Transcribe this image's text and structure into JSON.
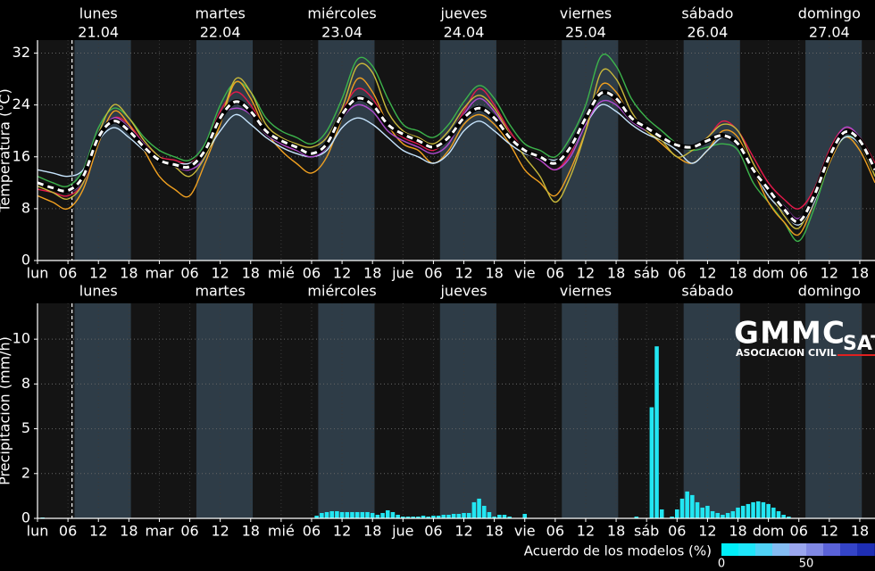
{
  "days": {
    "names": [
      "lunes",
      "martes",
      "miércoles",
      "jueves",
      "viernes",
      "sábado",
      "domingo"
    ],
    "dates": [
      "21.04",
      "22.04",
      "23.04",
      "24.04",
      "25.04",
      "26.04",
      "27.04"
    ],
    "colors": [
      "#ffffff",
      "#ffffff",
      "#ffffff",
      "#ffffff",
      "#ffffff",
      "#d01010",
      "#d01010"
    ]
  },
  "daylight": [
    [
      7.3,
      18.4
    ],
    [
      31.3,
      42.4
    ],
    [
      55.3,
      66.4
    ],
    [
      79.3,
      90.4
    ],
    [
      103.3,
      114.4
    ],
    [
      127.3,
      138.4
    ],
    [
      151.3,
      162.4
    ]
  ],
  "now": 6.8,
  "logo": {
    "name": "GMMC",
    "suffix": "SAT",
    "subtitle": "ASOCIACION CIVIL"
  },
  "agreement": {
    "label": "Acuerdo de los modelos (%)",
    "lim": [
      0,
      100
    ],
    "ticks": [
      0,
      50
    ],
    "colors": [
      "#00eef8",
      "#1ee6fa",
      "#50d2f6",
      "#84bcf2",
      "#9aa6ee",
      "#8088e4",
      "#5a62d8",
      "#3444c8",
      "#1e2eb4",
      "#142298"
    ]
  },
  "chart_data": [
    {
      "type": "line",
      "ylabel": "Temperatura (°C)",
      "xlim": [
        0,
        165
      ],
      "ylim": [
        0,
        34
      ],
      "yticks": [
        0,
        8,
        16,
        24,
        32
      ],
      "grid": true,
      "xticks": [
        {
          "value": 0,
          "label": "lun"
        },
        {
          "value": 6,
          "label": "06"
        },
        12,
        18,
        {
          "value": 24,
          "label": "mar"
        },
        {
          "value": 30,
          "label": "06"
        },
        {
          "value": 36,
          "label": "12"
        },
        {
          "value": 42,
          "label": "18"
        },
        {
          "value": 48,
          "label": "mié"
        },
        {
          "value": 54,
          "label": "06"
        },
        {
          "value": 60,
          "label": "12"
        },
        {
          "value": 66,
          "label": "18"
        },
        {
          "value": 72,
          "label": "jue"
        },
        {
          "value": 78,
          "label": "06"
        },
        {
          "value": 84,
          "label": "12"
        },
        {
          "value": 90,
          "label": "18"
        },
        {
          "value": 96,
          "label": "vie"
        },
        {
          "value": 102,
          "label": "06"
        },
        {
          "value": 108,
          "label": "12"
        },
        {
          "value": 114,
          "label": "18"
        },
        {
          "value": 120,
          "label": "sáb"
        },
        {
          "value": 126,
          "label": "06"
        },
        {
          "value": 132,
          "label": "12"
        },
        {
          "value": 138,
          "label": "18"
        },
        {
          "value": 144,
          "label": "dom"
        },
        {
          "value": 150,
          "label": "06"
        },
        {
          "value": 156,
          "label": "12"
        },
        {
          "value": 162,
          "label": "18"
        }
      ],
      "x": [
        0,
        3,
        6,
        9,
        12,
        15,
        18,
        21,
        24,
        27,
        30,
        33,
        36,
        39,
        42,
        45,
        48,
        51,
        54,
        57,
        60,
        63,
        66,
        69,
        72,
        75,
        78,
        81,
        84,
        87,
        90,
        93,
        96,
        99,
        102,
        105,
        108,
        111,
        114,
        117,
        120,
        123,
        126,
        129,
        132,
        135,
        138,
        141,
        144,
        147,
        150,
        153,
        156,
        159,
        162,
        165
      ],
      "series": [
        {
          "color": "#3cb44b",
          "values": [
            13,
            12,
            11.5,
            14,
            20.5,
            23.5,
            22,
            19,
            17,
            16,
            15.5,
            18,
            24,
            27.5,
            26,
            22,
            20,
            19,
            18,
            20,
            25,
            31,
            30,
            25,
            21,
            20,
            19,
            21,
            24.5,
            27,
            25,
            21,
            18,
            17,
            16,
            19,
            24,
            31.5,
            30,
            25,
            22,
            20,
            18,
            17,
            17.5,
            18,
            17,
            12,
            9,
            6,
            3,
            8,
            15,
            19,
            18,
            13
          ]
        },
        {
          "color": "#e6194b",
          "values": [
            11,
            10.5,
            10,
            12,
            18.5,
            22,
            21,
            18,
            16,
            15.5,
            15,
            17.5,
            23,
            26,
            24,
            20,
            18,
            17,
            16.5,
            18,
            23,
            26.5,
            25,
            21,
            19,
            18,
            17,
            19,
            23,
            26.5,
            24,
            20,
            17,
            15.5,
            14,
            16.5,
            22,
            26,
            24.5,
            22,
            20.5,
            19,
            18,
            17.5,
            19,
            21.5,
            20,
            16,
            12,
            9.5,
            8,
            11,
            17,
            20.5,
            19,
            15
          ]
        },
        {
          "color": "#f0a020",
          "values": [
            10,
            9,
            8,
            11,
            18,
            23,
            21,
            17,
            13,
            11,
            10,
            15,
            21,
            27.5,
            25,
            20,
            17,
            15,
            13.5,
            16,
            22,
            28,
            26,
            21,
            18,
            17,
            15,
            17,
            21,
            22.5,
            21,
            18,
            14,
            12,
            10,
            14,
            20,
            27,
            26,
            22,
            20,
            18,
            16,
            15,
            17,
            20,
            19,
            14,
            9,
            6,
            4,
            9,
            15,
            19,
            17,
            12
          ]
        },
        {
          "color": "#c8e6ff",
          "values": [
            14,
            13.5,
            13,
            14,
            18.5,
            20.5,
            19,
            17,
            15.5,
            15,
            15,
            16.5,
            20,
            22.5,
            21,
            19,
            17.5,
            16.5,
            16,
            17,
            20.5,
            22,
            21,
            19,
            17,
            16,
            15,
            16.5,
            20,
            21.5,
            20,
            18,
            16.5,
            16,
            15.5,
            17,
            21,
            24,
            23,
            21,
            19.5,
            18.5,
            17,
            15,
            17,
            19,
            18,
            14,
            10,
            7.5,
            5.5,
            9,
            15.5,
            19,
            18,
            14
          ]
        },
        {
          "color": "#b04ad0",
          "values": [
            12,
            11,
            10.5,
            12.5,
            19,
            22,
            20.5,
            18,
            15.5,
            14.5,
            14,
            16,
            22,
            23.5,
            22.5,
            19.5,
            18,
            17,
            16,
            17.5,
            22,
            24,
            23,
            20,
            18.5,
            17.5,
            16.5,
            18,
            22.5,
            25,
            23,
            19.5,
            17,
            15.5,
            14,
            16,
            21,
            24.5,
            24,
            21.5,
            20,
            19,
            18,
            17.5,
            18.5,
            19.5,
            18,
            13.5,
            11,
            8.5,
            6.5,
            10.5,
            16.5,
            20.5,
            19,
            14.5
          ]
        },
        {
          "color": "#c8b83a",
          "values": [
            11.5,
            10.5,
            9.5,
            12,
            19.5,
            24,
            22,
            18.5,
            16,
            14.5,
            13,
            16,
            21.5,
            28,
            26,
            21,
            19,
            18,
            17.5,
            19,
            23.5,
            30,
            29,
            23,
            20,
            19,
            18,
            20,
            23.5,
            25.5,
            23.5,
            19.5,
            16,
            13,
            9,
            13,
            20,
            29,
            28,
            23,
            20,
            18.5,
            16,
            17,
            19,
            21,
            20,
            15,
            11,
            7,
            5,
            10,
            16,
            20,
            18,
            13
          ]
        },
        {
          "color": "#ffffff",
          "style": "dashed",
          "values": [
            12,
            11.2,
            10.8,
            13,
            19,
            21.5,
            20,
            17.5,
            15.5,
            14.8,
            14.5,
            17,
            22,
            24.5,
            23,
            20,
            18.5,
            17.5,
            16.5,
            18,
            22.5,
            25,
            24,
            21,
            19.5,
            18.5,
            17.5,
            19,
            22,
            23.5,
            22,
            19,
            17,
            16,
            15,
            17.5,
            22,
            25.8,
            25,
            22,
            20.5,
            19,
            17.8,
            17.5,
            18.5,
            19.3,
            18,
            14,
            11,
            8,
            6,
            10,
            16,
            19.8,
            18.5,
            14
          ]
        }
      ]
    },
    {
      "type": "bar",
      "ylabel": "Precipitación (mm/h)",
      "xlim": [
        0,
        165
      ],
      "ylim": [
        0,
        12
      ],
      "yticks": [
        0,
        {
          "value": 2.5,
          "label": "2"
        },
        5,
        {
          "value": 7.5,
          "label": "8"
        },
        10
      ],
      "grid": true,
      "color": "#22e6f2",
      "xticks": [
        {
          "value": 0,
          "label": "lun"
        },
        {
          "value": 6,
          "label": "06"
        },
        12,
        18,
        {
          "value": 24,
          "label": "mar"
        },
        {
          "value": 30,
          "label": "06"
        },
        {
          "value": 36,
          "label": "12"
        },
        {
          "value": 42,
          "label": "18"
        },
        {
          "value": 48,
          "label": "mié"
        },
        {
          "value": 54,
          "label": "06"
        },
        {
          "value": 60,
          "label": "12"
        },
        {
          "value": 66,
          "label": "18"
        },
        {
          "value": 72,
          "label": "jue"
        },
        {
          "value": 78,
          "label": "06"
        },
        {
          "value": 84,
          "label": "12"
        },
        {
          "value": 90,
          "label": "18"
        },
        {
          "value": 96,
          "label": "vie"
        },
        {
          "value": 102,
          "label": "06"
        },
        {
          "value": 108,
          "label": "12"
        },
        {
          "value": 114,
          "label": "18"
        },
        {
          "value": 120,
          "label": "sáb"
        },
        {
          "value": 126,
          "label": "06"
        },
        {
          "value": 132,
          "label": "12"
        },
        {
          "value": 138,
          "label": "18"
        },
        {
          "value": 144,
          "label": "dom"
        },
        {
          "value": 150,
          "label": "06"
        },
        {
          "value": 156,
          "label": "12"
        },
        {
          "value": 162,
          "label": "18"
        }
      ],
      "x": [
        1,
        55,
        56,
        57,
        58,
        59,
        60,
        61,
        62,
        63,
        64,
        65,
        66,
        67,
        68,
        69,
        70,
        71,
        72,
        73,
        74,
        75,
        76,
        77,
        78,
        79,
        80,
        81,
        82,
        83,
        84,
        85,
        86,
        87,
        88,
        89,
        90,
        91,
        92,
        93,
        96,
        118,
        121,
        122,
        123,
        125,
        126,
        127,
        128,
        129,
        130,
        131,
        132,
        133,
        134,
        135,
        136,
        137,
        138,
        139,
        140,
        141,
        142,
        143,
        144,
        145,
        146,
        147,
        148
      ],
      "values": [
        0.05,
        0.15,
        0.3,
        0.35,
        0.4,
        0.4,
        0.35,
        0.35,
        0.35,
        0.35,
        0.35,
        0.35,
        0.3,
        0.2,
        0.3,
        0.45,
        0.35,
        0.2,
        0.1,
        0.1,
        0.1,
        0.1,
        0.15,
        0.1,
        0.15,
        0.15,
        0.2,
        0.2,
        0.25,
        0.25,
        0.3,
        0.3,
        0.9,
        1.1,
        0.7,
        0.35,
        0.1,
        0.2,
        0.2,
        0.1,
        0.25,
        0.1,
        6.2,
        9.6,
        0.5,
        0.1,
        0.5,
        1.1,
        1.5,
        1.3,
        0.9,
        0.6,
        0.7,
        0.4,
        0.3,
        0.2,
        0.3,
        0.4,
        0.6,
        0.7,
        0.8,
        0.9,
        0.95,
        0.9,
        0.8,
        0.6,
        0.4,
        0.2,
        0.1
      ]
    }
  ]
}
